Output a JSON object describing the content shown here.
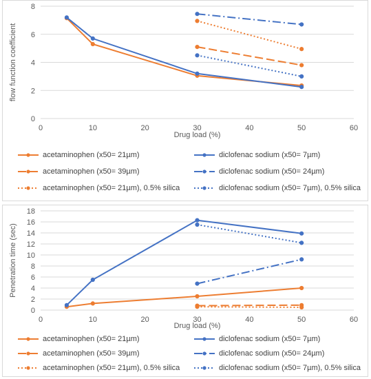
{
  "chart_data": [
    {
      "type": "line",
      "xlabel": "Drug load (%)",
      "ylabel": "flow function coefficient",
      "xlim": [
        0,
        60
      ],
      "ylim": [
        0,
        8
      ],
      "xticks": [
        0,
        10,
        20,
        30,
        40,
        50,
        60
      ],
      "yticks": [
        0,
        2,
        4,
        6,
        8
      ],
      "grid": "horizontal",
      "legend_position": "bottom",
      "series": [
        {
          "name": "acetaminophen (x50= 21µm)",
          "color": "#ed7d31",
          "dash": "solid",
          "x": [
            5,
            10,
            30,
            50
          ],
          "values": [
            7.15,
            5.3,
            3.05,
            2.35
          ]
        },
        {
          "name": "diclofenac sodium (x50= 7µm)",
          "color": "#4472c4",
          "dash": "solid",
          "x": [
            5,
            10,
            30,
            50
          ],
          "values": [
            7.2,
            5.7,
            3.2,
            2.25
          ]
        },
        {
          "name": "acetaminophen (x50= 39µm)",
          "color": "#ed7d31",
          "dash": "longdash",
          "x": [
            30,
            50
          ],
          "values": [
            5.1,
            3.8
          ]
        },
        {
          "name": "diclofenac sodium (x50= 24µm)",
          "color": "#4472c4",
          "dash": "dashdot",
          "x": [
            30,
            50
          ],
          "values": [
            7.45,
            6.7
          ]
        },
        {
          "name": "acetaminophen (x50= 21µm), 0.5% silica",
          "color": "#ed7d31",
          "dash": "dotted",
          "x": [
            30,
            50
          ],
          "values": [
            6.95,
            4.95
          ]
        },
        {
          "name": "diclofenac sodium (x50= 7µm), 0.5% silica",
          "color": "#4472c4",
          "dash": "dotted",
          "x": [
            30,
            50
          ],
          "values": [
            4.5,
            3.0
          ]
        }
      ]
    },
    {
      "type": "line",
      "xlabel": "Drug load (%)",
      "ylabel": "Penetration time (sec)",
      "xlim": [
        0,
        60
      ],
      "ylim": [
        0,
        18
      ],
      "xticks": [
        0,
        10,
        20,
        30,
        40,
        50,
        60
      ],
      "yticks": [
        0,
        2,
        4,
        6,
        8,
        10,
        12,
        14,
        16,
        18
      ],
      "grid": "horizontal",
      "legend_position": "bottom",
      "series": [
        {
          "name": "acetaminophen (x50= 21µm)",
          "color": "#ed7d31",
          "dash": "solid",
          "x": [
            5,
            10,
            30,
            50
          ],
          "values": [
            0.6,
            1.2,
            2.5,
            4.0
          ]
        },
        {
          "name": "diclofenac sodium (x50= 7µm)",
          "color": "#4472c4",
          "dash": "solid",
          "x": [
            5,
            10,
            30,
            50
          ],
          "values": [
            0.9,
            5.5,
            16.3,
            13.9
          ]
        },
        {
          "name": "acetaminophen (x50= 39µm)",
          "color": "#ed7d31",
          "dash": "longdash",
          "x": [
            30,
            50
          ],
          "values": [
            0.8,
            0.9
          ]
        },
        {
          "name": "diclofenac sodium (x50= 24µm)",
          "color": "#4472c4",
          "dash": "dashdot",
          "x": [
            30,
            50
          ],
          "values": [
            4.8,
            9.2
          ]
        },
        {
          "name": "acetaminophen (x50= 21µm), 0.5% silica",
          "color": "#ed7d31",
          "dash": "dotted",
          "x": [
            30,
            50
          ],
          "values": [
            0.6,
            0.5
          ]
        },
        {
          "name": "diclofenac sodium (x50= 7µm), 0.5% silica",
          "color": "#4472c4",
          "dash": "dotted",
          "x": [
            30,
            50
          ],
          "values": [
            15.5,
            12.2
          ]
        }
      ]
    }
  ]
}
